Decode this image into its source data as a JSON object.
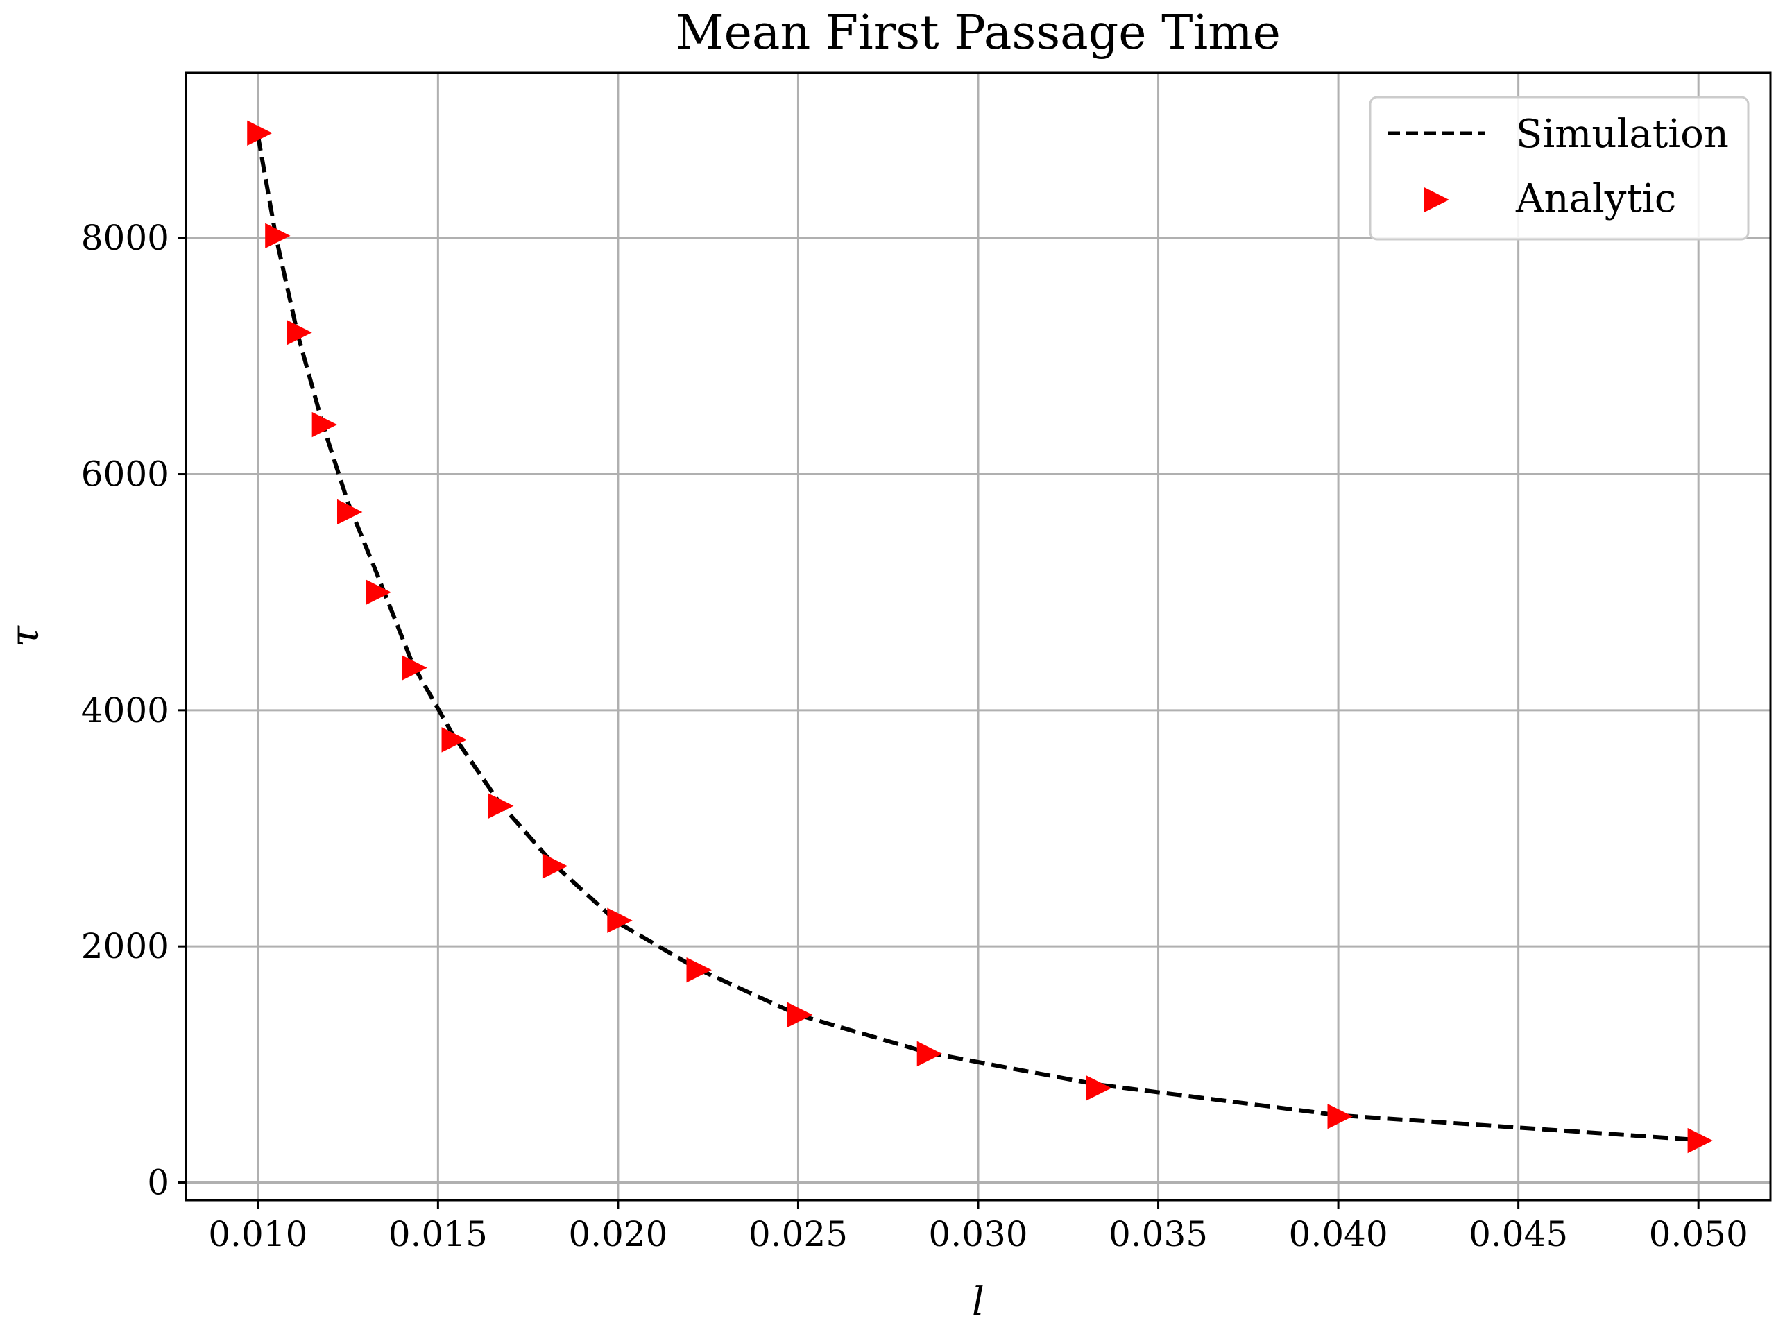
{
  "chart_data": {
    "type": "line",
    "title": "Mean First Passage Time",
    "xlabel": "l",
    "ylabel": "τ",
    "xlim": [
      0.008,
      0.052
    ],
    "ylim": [
      -150,
      9400
    ],
    "x_ticks": [
      0.01,
      0.015,
      0.02,
      0.025,
      0.03,
      0.035,
      0.04,
      0.045,
      0.05
    ],
    "x_tick_labels": [
      "0.010",
      "0.015",
      "0.020",
      "0.025",
      "0.030",
      "0.035",
      "0.040",
      "0.045",
      "0.050"
    ],
    "y_ticks": [
      0,
      2000,
      4000,
      6000,
      8000
    ],
    "y_tick_labels": [
      "0",
      "2000",
      "4000",
      "6000",
      "8000"
    ],
    "grid": true,
    "legend_position": "top-right",
    "series": [
      {
        "name": "Simulation",
        "style": "dashed-line",
        "color": "#000000",
        "x": [
          0.01,
          0.0105,
          0.0111,
          0.0118,
          0.0125,
          0.0133,
          0.0143,
          0.0154,
          0.0167,
          0.0182,
          0.02,
          0.0222,
          0.025,
          0.0286,
          0.0333,
          0.04,
          0.05
        ],
        "y": [
          8870,
          8010,
          7190,
          6420,
          5760,
          5160,
          4390,
          3800,
          3220,
          2700,
          2200,
          1810,
          1420,
          1100,
          830,
          570,
          360
        ]
      },
      {
        "name": "Analytic",
        "style": "right-triangle-markers",
        "color": "#ff0000",
        "x": [
          0.01,
          0.0105,
          0.0111,
          0.0118,
          0.0125,
          0.0133,
          0.0143,
          0.0154,
          0.0167,
          0.0182,
          0.02,
          0.0222,
          0.025,
          0.0286,
          0.0333,
          0.04,
          0.05
        ],
        "y": [
          8890,
          8020,
          7200,
          6420,
          5680,
          5000,
          4360,
          3750,
          3190,
          2680,
          2220,
          1800,
          1420,
          1090,
          800,
          560,
          355
        ]
      }
    ]
  }
}
